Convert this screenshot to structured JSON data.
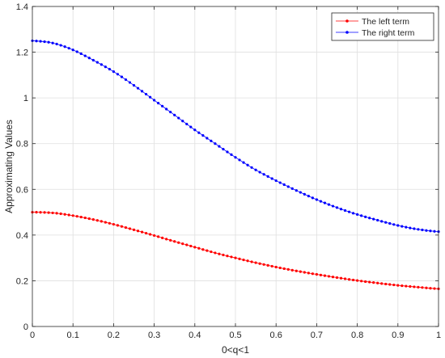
{
  "chart_data": {
    "type": "line",
    "title": "",
    "xlabel": "0<q<1",
    "ylabel": "Approximating Values",
    "xlim": [
      0,
      1
    ],
    "ylim": [
      0,
      1.4
    ],
    "xticks": [
      0,
      0.1,
      0.2,
      0.3,
      0.4,
      0.5,
      0.6,
      0.7,
      0.8,
      0.9,
      1
    ],
    "xtick_labels": [
      "0",
      "0.1",
      "0.2",
      "0.3",
      "0.4",
      "0.5",
      "0.6",
      "0.7",
      "0.8",
      "0.9",
      "1"
    ],
    "yticks": [
      0,
      0.2,
      0.4,
      0.6,
      0.8,
      1,
      1.2,
      1.4
    ],
    "ytick_labels": [
      "0",
      "0.2",
      "0.4",
      "0.6",
      "0.8",
      "1",
      "1.2",
      "1.4"
    ],
    "grid": true,
    "legend_position": "top-right",
    "x": [
      0,
      0.05,
      0.1,
      0.15,
      0.2,
      0.25,
      0.3,
      0.35,
      0.4,
      0.45,
      0.5,
      0.55,
      0.6,
      0.65,
      0.7,
      0.75,
      0.8,
      0.85,
      0.9,
      0.95,
      1
    ],
    "series": [
      {
        "name": "The left term",
        "color": "#ff0000",
        "values": [
          0.5,
          0.497,
          0.485,
          0.468,
          0.447,
          0.423,
          0.398,
          0.372,
          0.347,
          0.322,
          0.3,
          0.279,
          0.26,
          0.243,
          0.228,
          0.214,
          0.201,
          0.19,
          0.18,
          0.172,
          0.165
        ]
      },
      {
        "name": "The right term",
        "color": "#0000ff",
        "values": [
          1.25,
          1.24,
          1.21,
          1.165,
          1.115,
          1.055,
          0.99,
          0.925,
          0.86,
          0.8,
          0.74,
          0.685,
          0.638,
          0.595,
          0.555,
          0.52,
          0.49,
          0.465,
          0.442,
          0.425,
          0.415
        ]
      }
    ]
  }
}
